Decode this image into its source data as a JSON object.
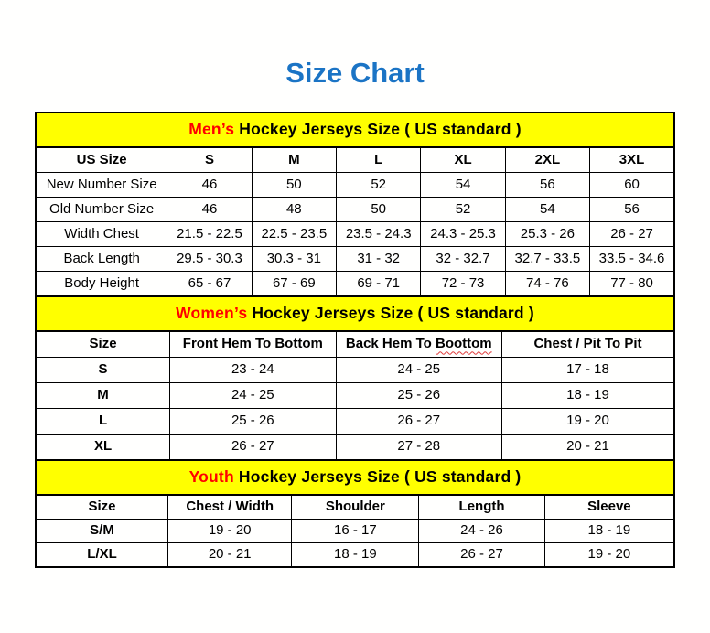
{
  "page": {
    "title": "Size Chart"
  },
  "colors": {
    "title_blue": "#1b74c5",
    "section_band_yellow": "#ffff00",
    "section_highlight_red": "#ff0000",
    "border_black": "#000000",
    "squiggle_red": "#e03a3a"
  },
  "tables": {
    "men": {
      "header_highlight": "Men’s",
      "header_rest": " Hockey Jerseys Size ( US standard )",
      "columns": [
        "US Size",
        "S",
        "M",
        "L",
        "XL",
        "2XL",
        "3XL"
      ],
      "rows": [
        {
          "label": "New Number Size",
          "values": [
            "46",
            "50",
            "52",
            "54",
            "56",
            "60"
          ]
        },
        {
          "label": "Old Number Size",
          "values": [
            "46",
            "48",
            "50",
            "52",
            "54",
            "56"
          ]
        },
        {
          "label": "Width Chest",
          "values": [
            "21.5 - 22.5",
            "22.5 - 23.5",
            "23.5 - 24.3",
            "24.3 - 25.3",
            "25.3 - 26",
            "26 - 27"
          ]
        },
        {
          "label": "Back Length",
          "values": [
            "29.5 - 30.3",
            "30.3 - 31",
            "31 - 32",
            "32 - 32.7",
            "32.7 - 33.5",
            "33.5 - 34.6"
          ]
        },
        {
          "label": "Body Height",
          "values": [
            "65 - 67",
            "67 - 69",
            "69 - 71",
            "72 - 73",
            "74 - 76",
            "77 - 80"
          ]
        }
      ]
    },
    "women": {
      "header_highlight": "Women’s",
      "header_rest": " Hockey Jerseys Size ( US standard )",
      "columns": [
        {
          "label": "Size"
        },
        {
          "label": "Front Hem To Bottom"
        },
        {
          "label": "Back Hem To Boottom",
          "squiggle_word": "Boottom"
        },
        {
          "label": "Chest / Pit To Pit"
        }
      ],
      "rows": [
        {
          "label": "S",
          "values": [
            "23 - 24",
            "24 - 25",
            "17 - 18"
          ]
        },
        {
          "label": "M",
          "values": [
            "24 - 25",
            "25 - 26",
            "18 - 19"
          ]
        },
        {
          "label": "L",
          "values": [
            "25 - 26",
            "26 - 27",
            "19 - 20"
          ]
        },
        {
          "label": "XL",
          "values": [
            "26 - 27",
            "27 - 28",
            "20 - 21"
          ]
        }
      ]
    },
    "youth": {
      "header_highlight": "Youth",
      "header_rest": " Hockey Jerseys Size ( US standard )",
      "columns": [
        "Size",
        "Chest / Width",
        "Shoulder",
        "Length",
        "Sleeve"
      ],
      "rows": [
        {
          "label": "S/M",
          "values": [
            "19 - 20",
            "16 - 17",
            "24 - 26",
            "18 - 19"
          ]
        },
        {
          "label": "L/XL",
          "values": [
            "20 - 21",
            "18 - 19",
            "26 - 27",
            "19 - 20"
          ]
        }
      ]
    }
  }
}
